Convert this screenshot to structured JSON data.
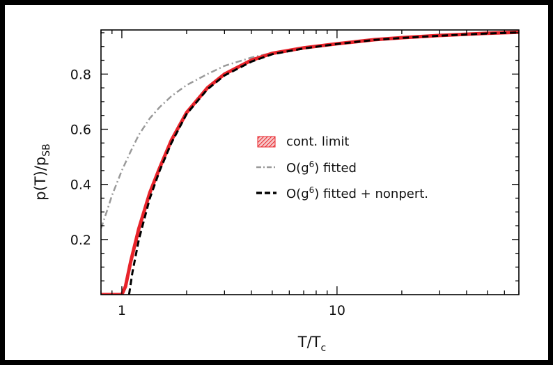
{
  "chart_data": {
    "type": "line",
    "x_scale": "log",
    "xlim": [
      0.8,
      70
    ],
    "ylim": [
      0,
      0.96
    ],
    "x_ticks": [
      1,
      10
    ],
    "x_tick_labels": [
      "1",
      "10"
    ],
    "y_ticks": [
      0.2,
      0.4,
      0.6,
      0.8
    ],
    "y_tick_labels": [
      "0.2",
      "0.4",
      "0.6",
      "0.8"
    ],
    "xlabel": {
      "main": "T/T",
      "sub": "c"
    },
    "ylabel": {
      "main": "p(T)/p",
      "sub": "SB"
    },
    "grid": false,
    "legend_position": "center-right",
    "series": [
      {
        "name": "cont. limit",
        "color": "#e8232a",
        "style": "hatched band",
        "x": [
          0.8,
          1.0,
          1.04,
          1.1,
          1.2,
          1.35,
          1.5,
          1.7,
          2.0,
          2.5,
          3.0,
          4.0,
          5.0,
          7.0,
          10,
          15,
          20,
          30,
          50,
          70
        ],
        "y": [
          0.0,
          0.0,
          0.03,
          0.12,
          0.24,
          0.37,
          0.46,
          0.56,
          0.66,
          0.75,
          0.8,
          0.85,
          0.875,
          0.895,
          0.91,
          0.925,
          0.932,
          0.94,
          0.948,
          0.952
        ]
      },
      {
        "name": "O(g⁶) fitted",
        "color": "#9a9a9a",
        "style": "dash-dot",
        "x": [
          0.8,
          0.85,
          0.9,
          1.0,
          1.1,
          1.2,
          1.35,
          1.5,
          1.7,
          2.0,
          2.5,
          3.0,
          4.0,
          5.0,
          7.0,
          10,
          15,
          20,
          30,
          50,
          70
        ],
        "y": [
          0.24,
          0.3,
          0.36,
          0.45,
          0.52,
          0.58,
          0.64,
          0.68,
          0.72,
          0.76,
          0.8,
          0.83,
          0.86,
          0.877,
          0.895,
          0.91,
          0.925,
          0.932,
          0.94,
          0.948,
          0.952
        ]
      },
      {
        "name": "O(g⁶) fitted + nonpert.",
        "color": "#000000",
        "style": "dashed",
        "x": [
          1.08,
          1.12,
          1.2,
          1.35,
          1.5,
          1.7,
          2.0,
          2.5,
          3.0,
          4.0,
          5.0,
          7.0,
          10,
          15,
          20,
          30,
          50,
          70
        ],
        "y": [
          0.0,
          0.08,
          0.2,
          0.35,
          0.45,
          0.55,
          0.655,
          0.745,
          0.795,
          0.845,
          0.872,
          0.893,
          0.909,
          0.924,
          0.931,
          0.939,
          0.947,
          0.951
        ]
      }
    ],
    "legend": {
      "entries": [
        {
          "label": "cont. limit"
        },
        {
          "label_main": "O(g",
          "label_sup": "6",
          "label_rest": ") fitted"
        },
        {
          "label_main": "O(g",
          "label_sup": "6",
          "label_rest": ") fitted + nonpert."
        }
      ]
    }
  }
}
